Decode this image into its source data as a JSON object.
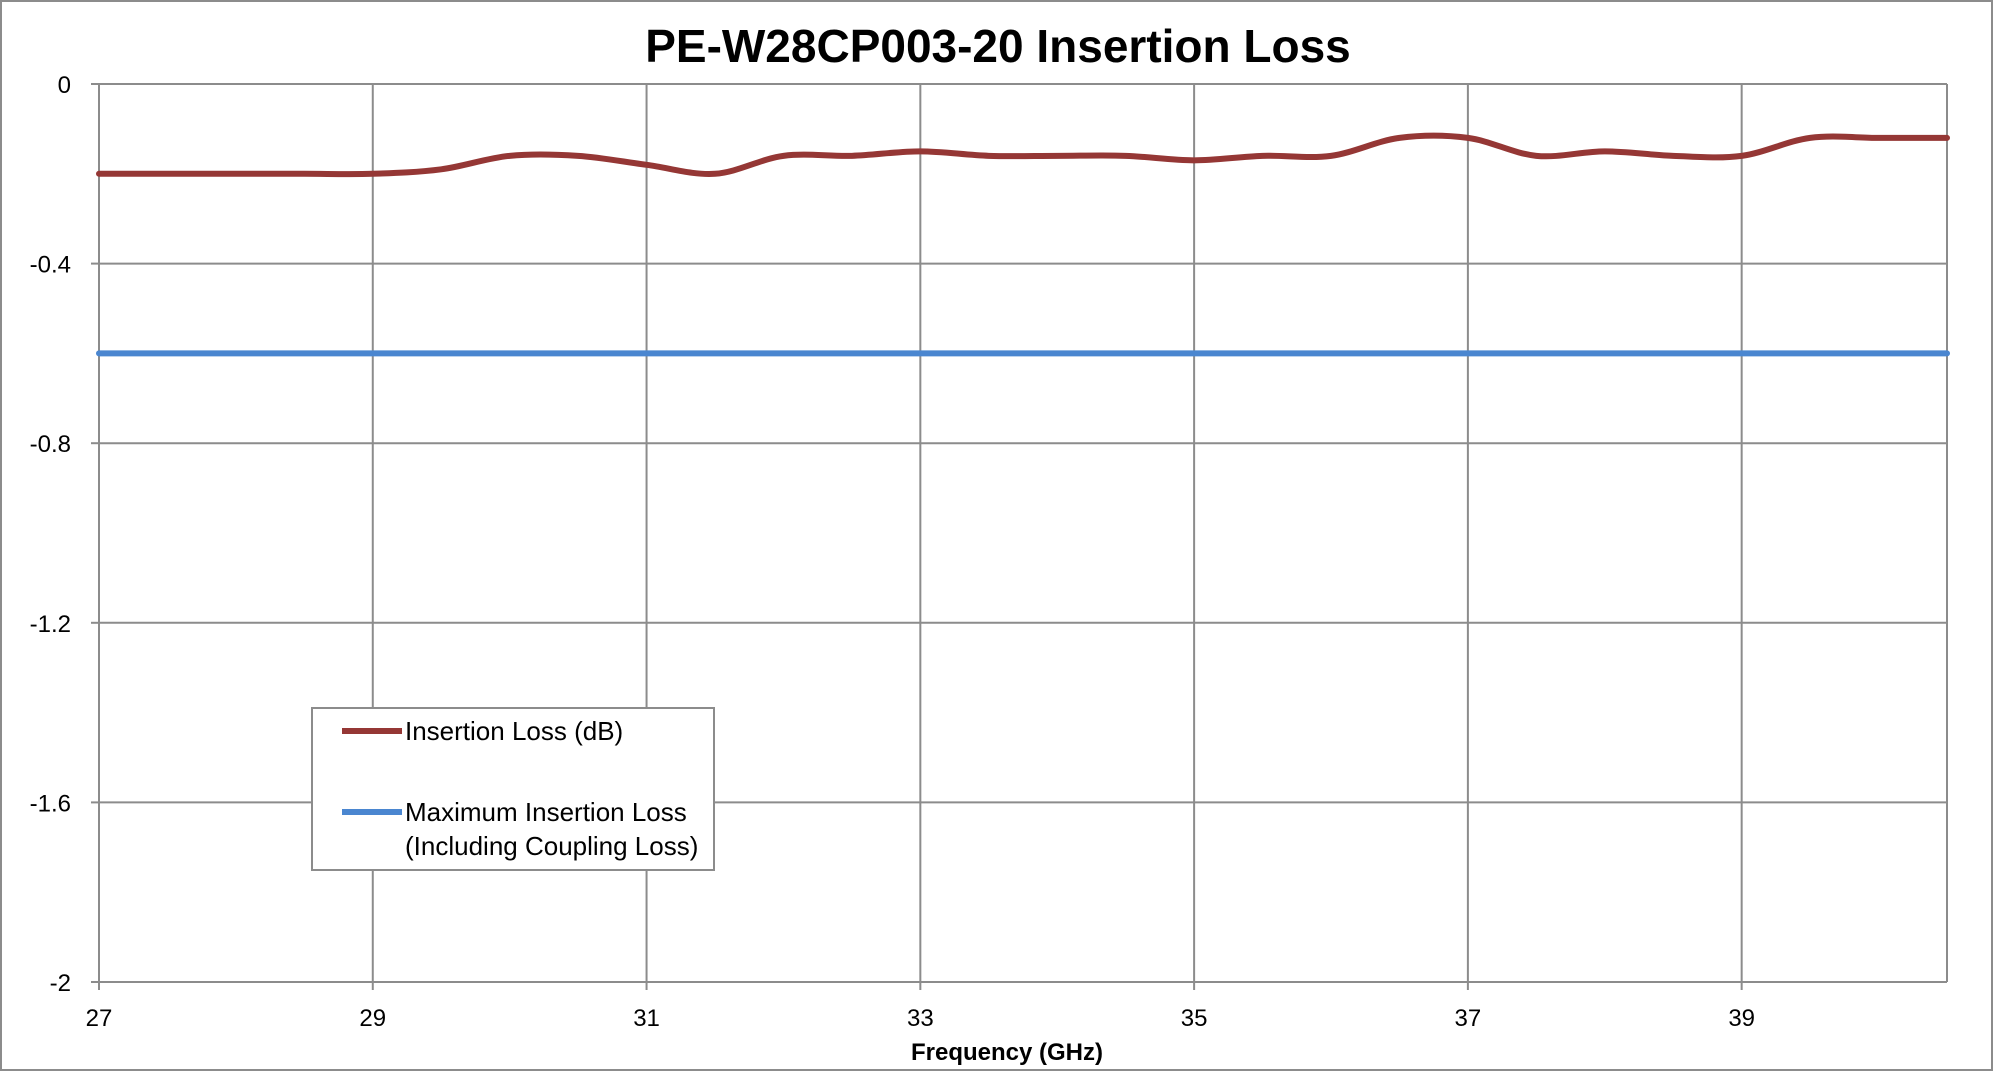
{
  "chart_data": {
    "type": "line",
    "title": "PE-W28CP003-20 Insertion Loss",
    "xlabel": "Frequency (GHz)",
    "ylabel": "",
    "xlim": [
      27,
      40.5
    ],
    "ylim": [
      -2,
      0
    ],
    "x_ticks": [
      "27",
      "29",
      "31",
      "33",
      "35",
      "37",
      "39"
    ],
    "y_ticks": [
      "0",
      "-0.4",
      "-0.8",
      "-1.2",
      "-1.6",
      "-2"
    ],
    "grid": true,
    "legend_position": "lower-left",
    "series": [
      {
        "name": "Insertion Loss (dB)",
        "color": "#953735",
        "x": [
          27,
          27.5,
          28,
          28.5,
          29,
          29.5,
          30,
          30.5,
          31,
          31.5,
          32,
          32.5,
          33,
          33.5,
          34,
          34.5,
          35,
          35.5,
          36,
          36.5,
          37,
          37.5,
          38,
          38.5,
          39,
          39.5,
          40,
          40.5
        ],
        "values": [
          -0.2,
          -0.2,
          -0.2,
          -0.2,
          -0.2,
          -0.19,
          -0.16,
          -0.16,
          -0.18,
          -0.2,
          -0.16,
          -0.16,
          -0.15,
          -0.16,
          -0.16,
          -0.16,
          -0.17,
          -0.16,
          -0.16,
          -0.12,
          -0.12,
          -0.16,
          -0.15,
          -0.16,
          -0.16,
          -0.12,
          -0.12,
          -0.12
        ]
      },
      {
        "name": "Maximum Insertion Loss\n(Including Coupling Loss)",
        "legend_lines": [
          "Maximum Insertion Loss",
          "(Including Coupling Loss)"
        ],
        "color": "#4a86d0",
        "x": [
          27,
          40.5
        ],
        "values": [
          -0.6,
          -0.6
        ]
      }
    ]
  }
}
